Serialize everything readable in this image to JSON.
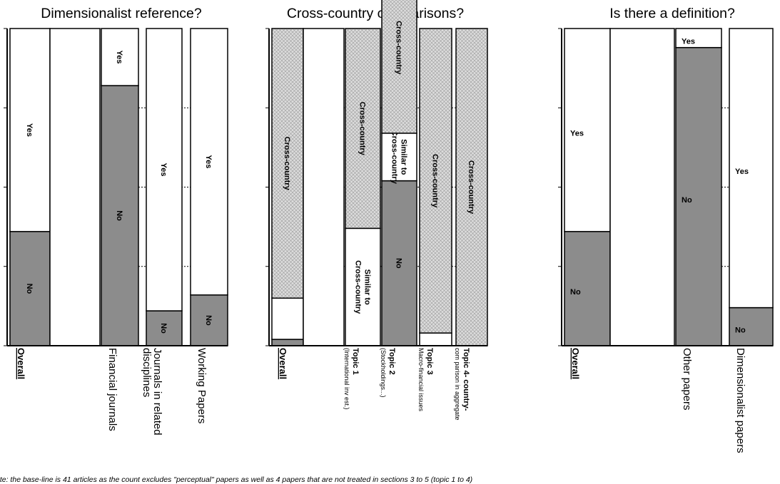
{
  "colors": {
    "no_fill": "#8c8c8c",
    "yes_fill": "#ffffff",
    "hatch_fill": "#d9d9d9",
    "border": "#000000"
  },
  "footnote": "ote: the base-line is 41 articles as the count excludes \"perceptual\" papers as well as 4 papers that are not treated in sections 3 to 5 (topic 1 to 4)",
  "chart_data": [
    {
      "type": "bar",
      "stacked": true,
      "normalized": true,
      "title": "Dimensionalist reference?",
      "ylim": [
        0,
        1
      ],
      "grid": true,
      "categories": [
        "Overall",
        "",
        "Financial journals",
        "Journals in related disciplines",
        "Working Papers"
      ],
      "category_labels": [
        {
          "main": "Overall",
          "sub": ""
        },
        {
          "main": "",
          "sub": ""
        },
        {
          "main": "Financial journals",
          "sub": ""
        },
        {
          "main": "Journals in related",
          "sub": "disciplines"
        },
        {
          "main": "Working Papers",
          "sub": ""
        }
      ],
      "series": [
        {
          "name": "No",
          "values": [
            0.36,
            null,
            0.82,
            0.11,
            0.16
          ],
          "fill": "no"
        },
        {
          "name": "Yes",
          "values": [
            0.64,
            null,
            0.18,
            0.89,
            0.84
          ],
          "fill": "yes"
        }
      ]
    },
    {
      "type": "bar",
      "stacked": true,
      "normalized": true,
      "title": "Cross-country comparisons?",
      "ylim": [
        0,
        1
      ],
      "grid": true,
      "categories": [
        "Overall",
        "",
        "Topic 1",
        "Topic 2",
        "Topic 3",
        "Topic 4"
      ],
      "category_labels": [
        {
          "main": "Overall",
          "sub": ""
        },
        {
          "main": "",
          "sub": ""
        },
        {
          "main": "Topic 1",
          "sub": "(International inv est.)"
        },
        {
          "main": "Topic 2",
          "sub": "(Stockholdings...)"
        },
        {
          "main": "Topic 3",
          "sub": "Macro-financial issues"
        },
        {
          "main": "Topic 4- country-",
          "sub": "com parison in aggregate"
        }
      ],
      "series": [
        {
          "name": "No",
          "values": [
            0.02,
            null,
            0,
            0.52,
            0,
            0
          ],
          "fill": "no",
          "labels": [
            "",
            "",
            "",
            "No",
            "",
            ""
          ]
        },
        {
          "name": "Similar to Cross-country",
          "values": [
            0.13,
            null,
            0.37,
            0.15,
            0.04,
            0
          ],
          "fill": "yes",
          "labels": [
            "",
            "",
            "Similar to Cross-country",
            "Similar to Cross-country",
            "",
            ""
          ]
        },
        {
          "name": "Cross-country",
          "values": [
            0.85,
            null,
            0.63,
            0.54,
            0.96,
            1.0
          ],
          "fill": "hatch",
          "labels": [
            "Cross-country",
            "",
            "Cross-country",
            "Cross-country",
            "Cross-country",
            "Cross-country"
          ]
        }
      ]
    },
    {
      "type": "bar",
      "stacked": true,
      "normalized": true,
      "title": "Is there a definition?",
      "ylim": [
        0,
        1
      ],
      "grid": true,
      "categories": [
        "Overall",
        "",
        "Other papers",
        "Dimensionalist papers"
      ],
      "category_labels": [
        {
          "main": "Overall",
          "sub": ""
        },
        {
          "main": "",
          "sub": ""
        },
        {
          "main": "Other papers",
          "sub": ""
        },
        {
          "main": "Dimensionalist papers",
          "sub": ""
        }
      ],
      "series": [
        {
          "name": "No",
          "values": [
            0.36,
            null,
            0.94,
            0.12
          ],
          "fill": "no"
        },
        {
          "name": "Yes",
          "values": [
            0.64,
            null,
            0.06,
            0.88
          ],
          "fill": "yes"
        }
      ]
    }
  ]
}
